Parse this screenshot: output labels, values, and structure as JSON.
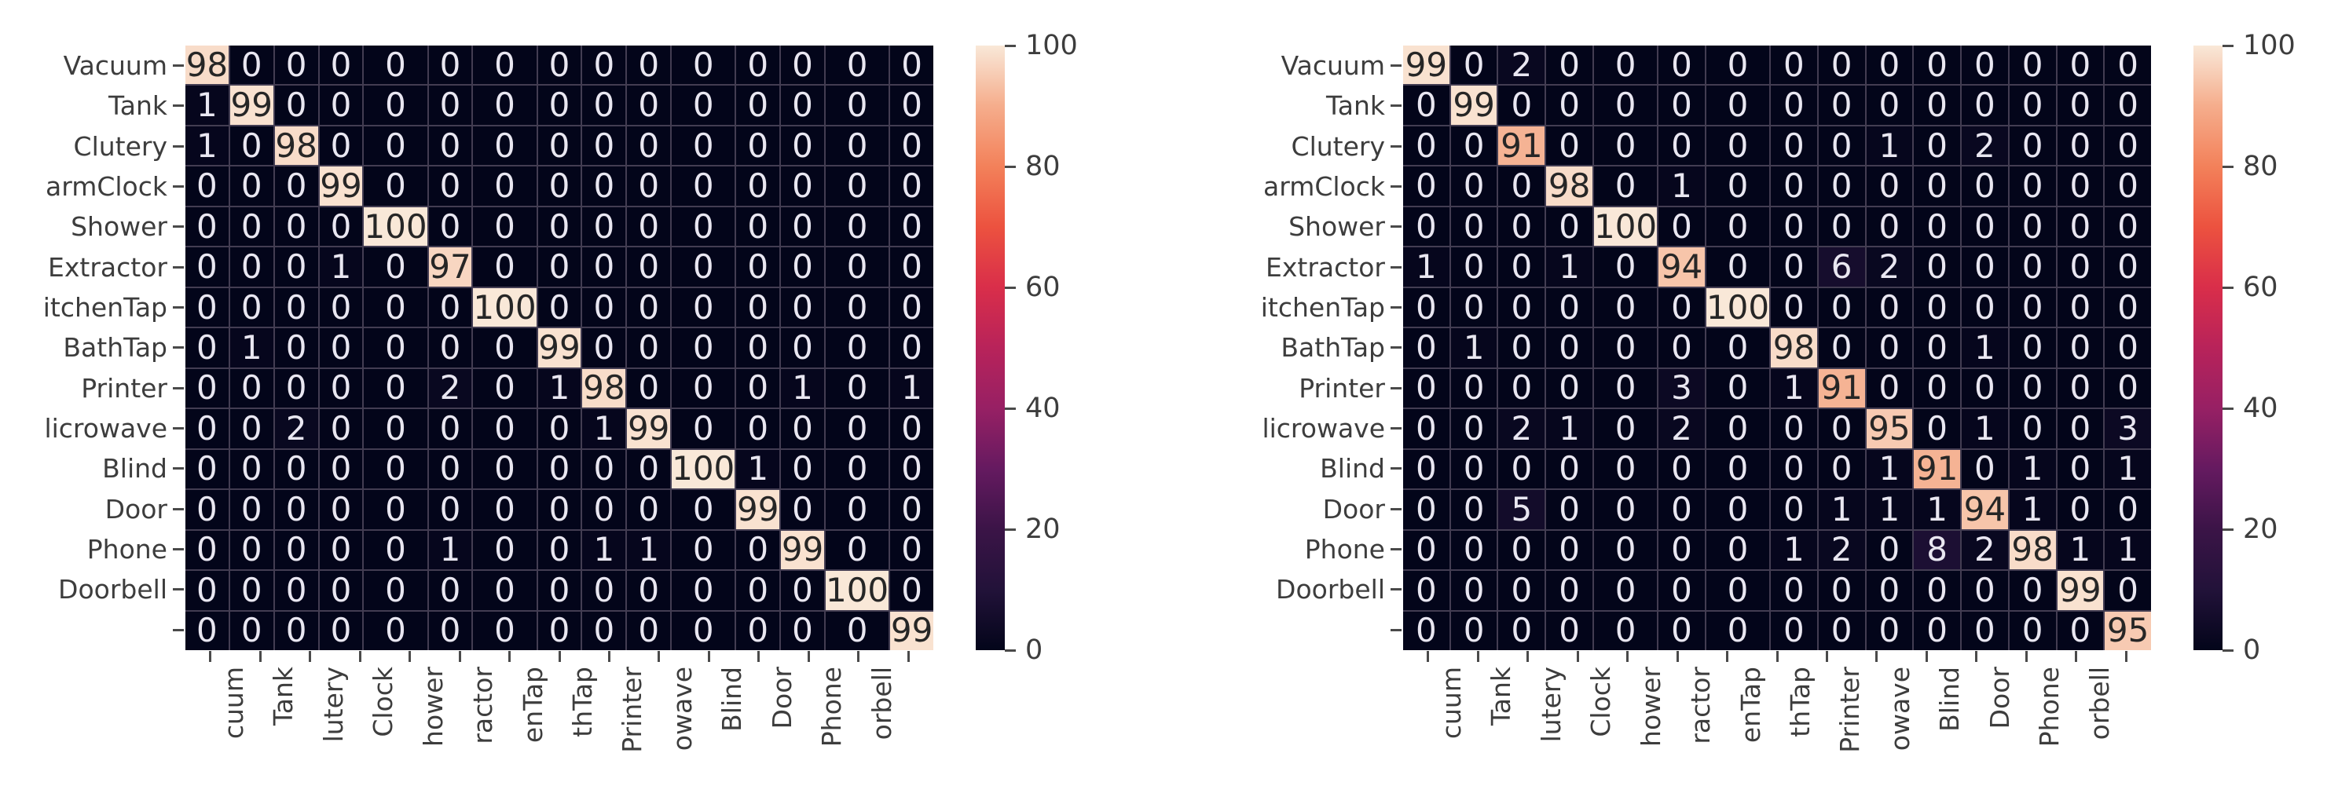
{
  "figure": {
    "description": "Two confusion-matrix heatmaps with colorbars",
    "colors": {
      "background": "#ffffff",
      "grid_line": "#433d52",
      "annot_light": "#e9e7f1",
      "annot_dark": "#262626",
      "axis_text": "#3d3d3d",
      "tick_mark": "#4a4a4a",
      "colormap_stops": [
        {
          "t": 0.0,
          "c": "#03051a"
        },
        {
          "t": 0.1,
          "c": "#221239"
        },
        {
          "t": 0.2,
          "c": "#3b1447"
        },
        {
          "t": 0.3,
          "c": "#651a60"
        },
        {
          "t": 0.4,
          "c": "#972064"
        },
        {
          "t": 0.5,
          "c": "#b8235a"
        },
        {
          "t": 0.6,
          "c": "#d92e4a"
        },
        {
          "t": 0.7,
          "c": "#ec523f"
        },
        {
          "t": 0.8,
          "c": "#f3815a"
        },
        {
          "t": 0.9,
          "c": "#f5ad8c"
        },
        {
          "t": 1.0,
          "c": "#f9e8d8"
        }
      ]
    }
  },
  "chart_data": [
    {
      "type": "heatmap",
      "title": "",
      "xlabel": "",
      "ylabel": "",
      "vmin": 0,
      "vmax": 100,
      "legend_position": "right",
      "colorbar_ticks": [
        100,
        80,
        60,
        40,
        20,
        0
      ],
      "row_labels": [
        "Vacuum",
        "Tank",
        "Clutery",
        "armClock",
        "Shower",
        "Extractor",
        "itchenTap",
        "BathTap",
        "Printer",
        "licrowave",
        "Blind",
        "Door",
        "Phone",
        "Doorbell",
        ""
      ],
      "col_labels": [
        "cuum",
        "Tank",
        "lutery",
        "Clock",
        "hower",
        "ractor",
        "enTap",
        "thTap",
        "Printer",
        "owave",
        "Blind",
        "Door",
        "Phone",
        "orbell",
        ""
      ],
      "values": [
        [
          98,
          0,
          0,
          0,
          0,
          0,
          0,
          0,
          0,
          0,
          0,
          0,
          0,
          0,
          0
        ],
        [
          1,
          99,
          0,
          0,
          0,
          0,
          0,
          0,
          0,
          0,
          0,
          0,
          0,
          0,
          0
        ],
        [
          1,
          0,
          98,
          0,
          0,
          0,
          0,
          0,
          0,
          0,
          0,
          0,
          0,
          0,
          0
        ],
        [
          0,
          0,
          0,
          99,
          0,
          0,
          0,
          0,
          0,
          0,
          0,
          0,
          0,
          0,
          0
        ],
        [
          0,
          0,
          0,
          0,
          100,
          0,
          0,
          0,
          0,
          0,
          0,
          0,
          0,
          0,
          0
        ],
        [
          0,
          0,
          0,
          1,
          0,
          97,
          0,
          0,
          0,
          0,
          0,
          0,
          0,
          0,
          0
        ],
        [
          0,
          0,
          0,
          0,
          0,
          0,
          100,
          0,
          0,
          0,
          0,
          0,
          0,
          0,
          0
        ],
        [
          0,
          1,
          0,
          0,
          0,
          0,
          0,
          99,
          0,
          0,
          0,
          0,
          0,
          0,
          0
        ],
        [
          0,
          0,
          0,
          0,
          0,
          2,
          0,
          1,
          98,
          0,
          0,
          0,
          1,
          0,
          1
        ],
        [
          0,
          0,
          2,
          0,
          0,
          0,
          0,
          0,
          1,
          99,
          0,
          0,
          0,
          0,
          0
        ],
        [
          0,
          0,
          0,
          0,
          0,
          0,
          0,
          0,
          0,
          0,
          100,
          1,
          0,
          0,
          0
        ],
        [
          0,
          0,
          0,
          0,
          0,
          0,
          0,
          0,
          0,
          0,
          0,
          99,
          0,
          0,
          0
        ],
        [
          0,
          0,
          0,
          0,
          0,
          1,
          0,
          0,
          1,
          1,
          0,
          0,
          99,
          0,
          0
        ],
        [
          0,
          0,
          0,
          0,
          0,
          0,
          0,
          0,
          0,
          0,
          0,
          0,
          0,
          100,
          0
        ],
        [
          0,
          0,
          0,
          0,
          0,
          0,
          0,
          0,
          0,
          0,
          0,
          0,
          0,
          0,
          99
        ]
      ]
    },
    {
      "type": "heatmap",
      "title": "",
      "xlabel": "",
      "ylabel": "",
      "vmin": 0,
      "vmax": 100,
      "legend_position": "right",
      "colorbar_ticks": [
        100,
        80,
        60,
        40,
        20,
        0
      ],
      "row_labels": [
        "Vacuum",
        "Tank",
        "Clutery",
        "armClock",
        "Shower",
        "Extractor",
        "itchenTap",
        "BathTap",
        "Printer",
        "licrowave",
        "Blind",
        "Door",
        "Phone",
        "Doorbell",
        ""
      ],
      "col_labels": [
        "cuum",
        "Tank",
        "lutery",
        "Clock",
        "hower",
        "ractor",
        "enTap",
        "thTap",
        "Printer",
        "owave",
        "Blind",
        "Door",
        "Phone",
        "orbell",
        ""
      ],
      "values": [
        [
          99,
          0,
          2,
          0,
          0,
          0,
          0,
          0,
          0,
          0,
          0,
          0,
          0,
          0,
          0
        ],
        [
          0,
          99,
          0,
          0,
          0,
          0,
          0,
          0,
          0,
          0,
          0,
          0,
          0,
          0,
          0
        ],
        [
          0,
          0,
          91,
          0,
          0,
          0,
          0,
          0,
          0,
          1,
          0,
          2,
          0,
          0,
          0
        ],
        [
          0,
          0,
          0,
          98,
          0,
          1,
          0,
          0,
          0,
          0,
          0,
          0,
          0,
          0,
          0
        ],
        [
          0,
          0,
          0,
          0,
          100,
          0,
          0,
          0,
          0,
          0,
          0,
          0,
          0,
          0,
          0
        ],
        [
          1,
          0,
          0,
          1,
          0,
          94,
          0,
          0,
          6,
          2,
          0,
          0,
          0,
          0,
          0
        ],
        [
          0,
          0,
          0,
          0,
          0,
          0,
          100,
          0,
          0,
          0,
          0,
          0,
          0,
          0,
          0
        ],
        [
          0,
          1,
          0,
          0,
          0,
          0,
          0,
          98,
          0,
          0,
          0,
          1,
          0,
          0,
          0
        ],
        [
          0,
          0,
          0,
          0,
          0,
          3,
          0,
          1,
          91,
          0,
          0,
          0,
          0,
          0,
          0
        ],
        [
          0,
          0,
          2,
          1,
          0,
          2,
          0,
          0,
          0,
          95,
          0,
          1,
          0,
          0,
          3
        ],
        [
          0,
          0,
          0,
          0,
          0,
          0,
          0,
          0,
          0,
          1,
          91,
          0,
          1,
          0,
          1
        ],
        [
          0,
          0,
          5,
          0,
          0,
          0,
          0,
          0,
          1,
          1,
          1,
          94,
          1,
          0,
          0
        ],
        [
          0,
          0,
          0,
          0,
          0,
          0,
          0,
          1,
          2,
          0,
          8,
          2,
          98,
          1,
          1
        ],
        [
          0,
          0,
          0,
          0,
          0,
          0,
          0,
          0,
          0,
          0,
          0,
          0,
          0,
          99,
          0
        ],
        [
          0,
          0,
          0,
          0,
          0,
          0,
          0,
          0,
          0,
          0,
          0,
          0,
          0,
          0,
          95
        ]
      ]
    }
  ]
}
